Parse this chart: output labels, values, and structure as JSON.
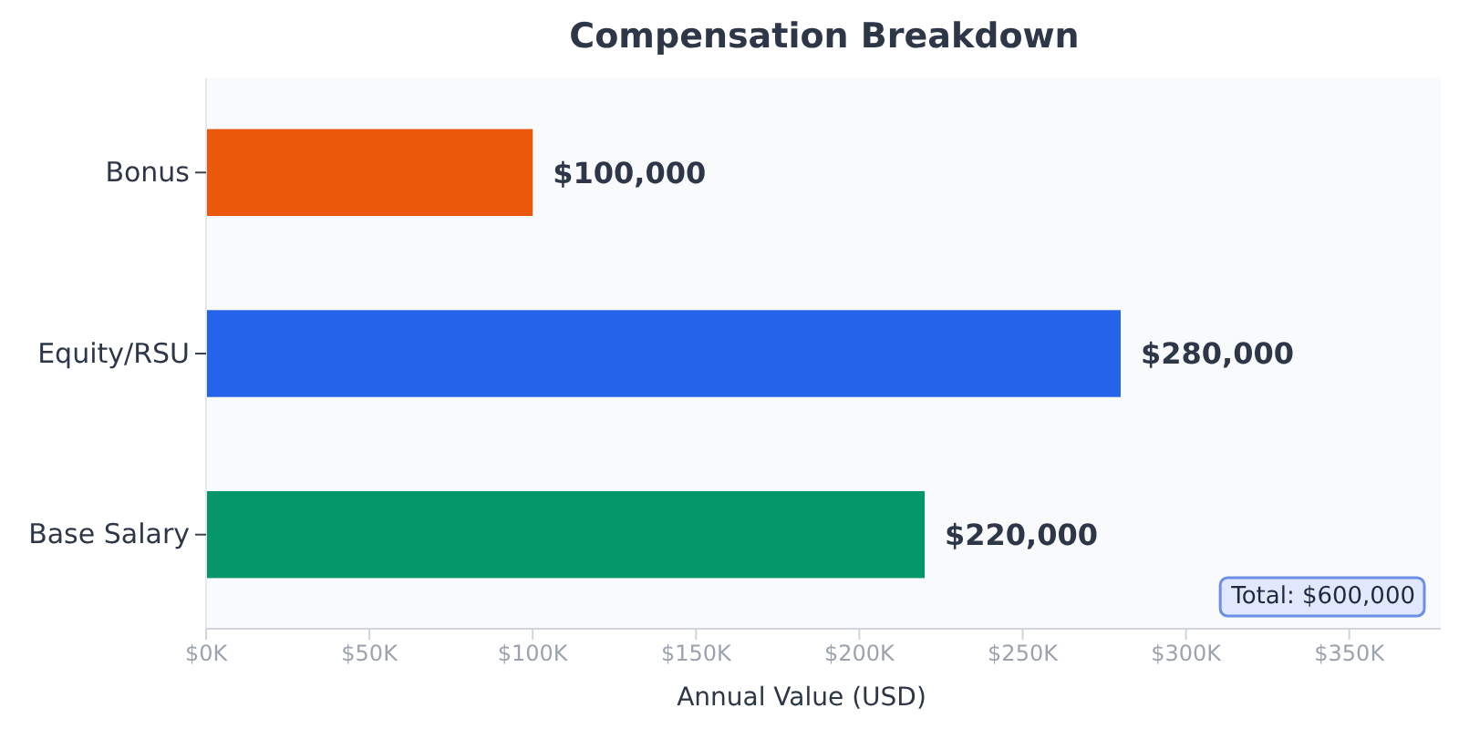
{
  "chart_data": {
    "type": "bar",
    "orientation": "horizontal",
    "title": "Compensation Breakdown",
    "xlabel": "Annual Value (USD)",
    "categories": [
      "Bonus",
      "Equity/RSU",
      "Base Salary"
    ],
    "values": [
      100000,
      280000,
      220000
    ],
    "colors": [
      "#ea580c",
      "#2563eb",
      "#059669"
    ],
    "value_labels": [
      "$100,000",
      "$280,000",
      "$220,000"
    ],
    "xlim": [
      0,
      378000
    ],
    "xticks": [
      {
        "value": 0,
        "label": "$0K"
      },
      {
        "value": 50000,
        "label": "$50K"
      },
      {
        "value": 100000,
        "label": "$100K"
      },
      {
        "value": 150000,
        "label": "$150K"
      },
      {
        "value": 200000,
        "label": "$200K"
      },
      {
        "value": 250000,
        "label": "$250K"
      },
      {
        "value": 300000,
        "label": "$300K"
      },
      {
        "value": 350000,
        "label": "$350K"
      }
    ],
    "annotations": [
      "Total: $600,000"
    ]
  }
}
